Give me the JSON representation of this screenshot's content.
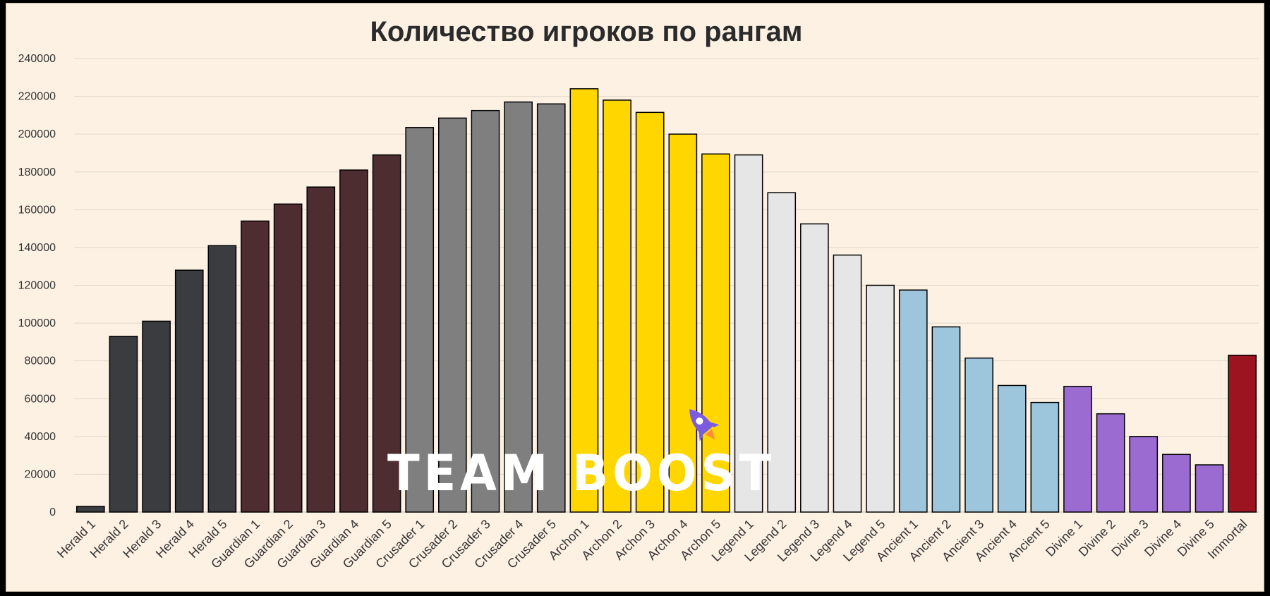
{
  "chart_data": {
    "type": "bar",
    "title": "Количество игроков по рангам",
    "xlabel": "",
    "ylabel": "",
    "ylim": [
      0,
      240000
    ],
    "yticks": [
      0,
      20000,
      40000,
      60000,
      80000,
      100000,
      120000,
      140000,
      160000,
      180000,
      200000,
      220000,
      240000
    ],
    "grid": true,
    "legend": "none",
    "categories": [
      "Herald 1",
      "Herald 2",
      "Herald 3",
      "Herald 4",
      "Herald 5",
      "Guardian 1",
      "Guardian 2",
      "Guardian 3",
      "Guardian 4",
      "Guardian 5",
      "Crusader 1",
      "Crusader 2",
      "Crusader 3",
      "Crusader 4",
      "Crusader 5",
      "Archon 1",
      "Archon 2",
      "Archon 3",
      "Archon 4",
      "Archon 5",
      "Legend 1",
      "Legend 2",
      "Legend 3",
      "Legend 4",
      "Legend 5",
      "Ancient 1",
      "Ancient 2",
      "Ancient 3",
      "Ancient 4",
      "Ancient 5",
      "Divine 1",
      "Divine 2",
      "Divine 3",
      "Divine 4",
      "Divine 5",
      "Immortal"
    ],
    "values": [
      3000,
      93000,
      101000,
      128000,
      141000,
      154000,
      163000,
      172000,
      181000,
      189000,
      203500,
      208500,
      212500,
      217000,
      216000,
      224000,
      218000,
      211500,
      200000,
      189500,
      189000,
      169000,
      152500,
      136000,
      120000,
      117500,
      98000,
      81500,
      67000,
      58000,
      66500,
      52000,
      40000,
      30500,
      25000,
      83000
    ],
    "bar_colors": [
      "#3a3c40",
      "#3a3c40",
      "#3a3c40",
      "#3a3c40",
      "#3a3c40",
      "#4e2d30",
      "#4e2d30",
      "#4e2d30",
      "#4e2d30",
      "#4e2d30",
      "#7f7f7f",
      "#7f7f7f",
      "#7f7f7f",
      "#7f7f7f",
      "#7f7f7f",
      "#ffd600",
      "#ffd600",
      "#ffd600",
      "#ffd600",
      "#ffd600",
      "#e6e6e6",
      "#e6e6e6",
      "#e6e6e6",
      "#e6e6e6",
      "#e6e6e6",
      "#9dc6dc",
      "#9dc6dc",
      "#9dc6dc",
      "#9dc6dc",
      "#9dc6dc",
      "#9b6bd2",
      "#9b6bd2",
      "#9b6bd2",
      "#9b6bd2",
      "#9b6bd2",
      "#9c1420"
    ]
  },
  "watermark": {
    "text": "TEAM BOOST",
    "color": "#ffffff",
    "accent": "#7b5ce0",
    "icon": "rocket-icon"
  },
  "colors": {
    "background": "#fdf1e4",
    "frame": "#000000",
    "gridline": "#e3d7ca"
  }
}
